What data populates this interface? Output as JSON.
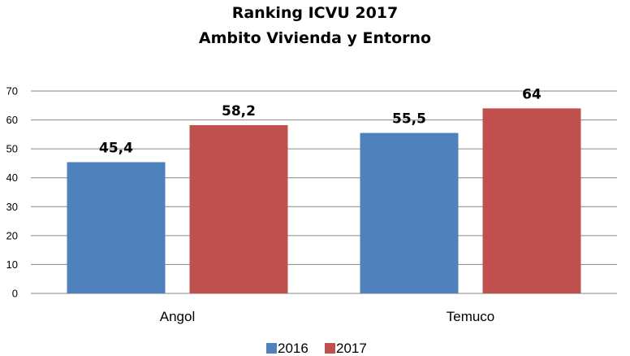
{
  "chart_data": {
    "type": "bar",
    "title": "Ranking ICVU 2017",
    "subtitle": "Ambito Vivienda y Entorno",
    "categories": [
      "Angol",
      "Temuco"
    ],
    "series": [
      {
        "name": "2016",
        "values": [
          45.4,
          55.5
        ],
        "labels": [
          "45,4",
          "55,5"
        ],
        "color": "#4f81bd"
      },
      {
        "name": "2017",
        "values": [
          58.2,
          64
        ],
        "labels": [
          "58,2",
          "64"
        ],
        "color": "#c0504d"
      }
    ],
    "ylim": [
      0,
      70
    ],
    "yticks": [
      0,
      10,
      20,
      30,
      40,
      50,
      60,
      70
    ],
    "grid": true,
    "legend": "bottom",
    "xlabel": "",
    "ylabel": ""
  }
}
